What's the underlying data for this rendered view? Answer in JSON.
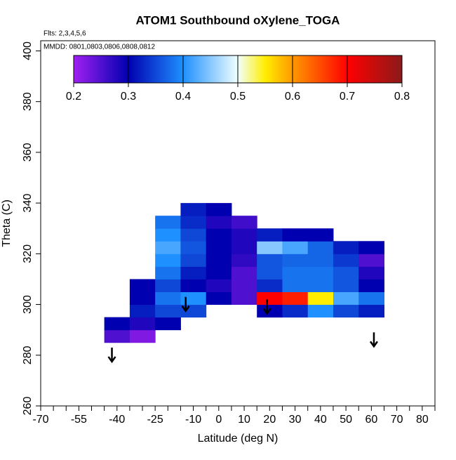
{
  "chart_data": {
    "type": "heatmap",
    "title": "ATOM1 Southbound oXylene_TOGA",
    "notes": [
      "Flts: 2,3,4,5,6",
      "MMDD: 0801,0803,0806,0808,0812"
    ],
    "x_label": "Latitude (deg N)",
    "y_label": "Theta (C)",
    "xlim": [
      -70,
      85
    ],
    "ylim": [
      260,
      404
    ],
    "xticks": [
      -70,
      -55,
      -40,
      -25,
      -10,
      0,
      10,
      20,
      30,
      40,
      50,
      60,
      70,
      80
    ],
    "xminor_ticks": [
      -65,
      -60,
      -50,
      -45,
      -35,
      -30,
      -20,
      -15,
      -5,
      5,
      15,
      25,
      35,
      45,
      55,
      65,
      75,
      85
    ],
    "yticks": [
      260,
      280,
      300,
      320,
      340,
      360,
      380,
      400
    ],
    "x": [
      -40,
      -30,
      -20,
      -10,
      0,
      10,
      20,
      30,
      40,
      50,
      60
    ],
    "y": [
      287.5,
      292.5,
      297.5,
      302.5,
      307.5,
      312.5,
      317.5,
      322.5,
      327.5,
      332.5,
      337.5
    ],
    "z": [
      [
        0.25,
        0.22,
        null,
        null,
        null,
        null,
        null,
        null,
        null,
        null,
        null
      ],
      [
        0.3,
        0.28,
        0.3,
        null,
        null,
        null,
        null,
        null,
        null,
        null,
        null
      ],
      [
        null,
        0.32,
        0.35,
        0.35,
        null,
        null,
        0.3,
        0.33,
        0.4,
        0.35,
        0.32
      ],
      [
        null,
        0.3,
        0.38,
        0.4,
        0.3,
        0.25,
        0.7,
        0.68,
        0.55,
        0.42,
        0.38
      ],
      [
        null,
        0.3,
        0.35,
        0.3,
        0.28,
        0.25,
        0.33,
        0.38,
        0.38,
        0.36,
        0.3
      ],
      [
        null,
        null,
        0.38,
        0.32,
        0.3,
        0.25,
        0.36,
        0.38,
        0.38,
        0.36,
        0.28
      ],
      [
        null,
        null,
        0.4,
        0.35,
        0.3,
        0.27,
        0.36,
        0.37,
        0.37,
        0.34,
        0.25
      ],
      [
        null,
        null,
        0.42,
        0.36,
        0.3,
        0.28,
        0.45,
        0.42,
        0.37,
        0.32,
        0.3
      ],
      [
        null,
        null,
        0.4,
        0.35,
        0.3,
        0.28,
        0.32,
        0.3,
        0.3,
        null,
        null
      ],
      [
        null,
        null,
        0.38,
        0.33,
        0.28,
        0.26,
        null,
        null,
        null,
        null,
        null
      ],
      [
        null,
        null,
        null,
        0.32,
        0.3,
        null,
        null,
        null,
        null,
        null,
        null
      ]
    ],
    "zlim": [
      0.2,
      0.8
    ],
    "zticks": [
      0.2,
      0.3,
      0.4,
      0.5,
      0.6,
      0.7,
      0.8
    ],
    "colorscale": [
      [
        0.2,
        "#a020f0"
      ],
      [
        0.3,
        "#0000b0"
      ],
      [
        0.4,
        "#1e90ff"
      ],
      [
        0.5,
        "#f0ffff"
      ],
      [
        0.55,
        "#ffee00"
      ],
      [
        0.6,
        "#ff9900"
      ],
      [
        0.7,
        "#ff0000"
      ],
      [
        0.8,
        "#8b1a1a"
      ]
    ],
    "arrows": {
      "x": [
        -42,
        -13,
        19,
        61
      ],
      "y": [
        283,
        303,
        302,
        289
      ]
    }
  }
}
